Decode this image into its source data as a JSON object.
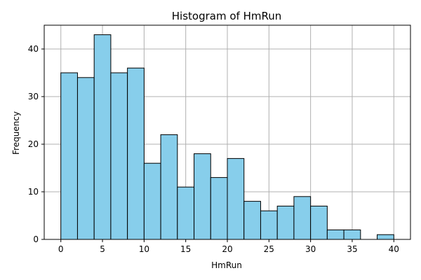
{
  "chart_data": {
    "type": "bar",
    "title": "Histogram of HmRun",
    "xlabel": "HmRun",
    "ylabel": "Frequency",
    "bin_edges": [
      0,
      2,
      4,
      6,
      8,
      10,
      12,
      14,
      16,
      18,
      20,
      22,
      24,
      26,
      28,
      30,
      32,
      34,
      36,
      38,
      40
    ],
    "counts": [
      35,
      34,
      43,
      35,
      36,
      16,
      22,
      11,
      18,
      13,
      17,
      8,
      6,
      7,
      9,
      7,
      2,
      2,
      0,
      1
    ],
    "xlim": [
      -2,
      42
    ],
    "ylim": [
      0,
      45
    ],
    "xticks": [
      0,
      5,
      10,
      15,
      20,
      25,
      30,
      35,
      40
    ],
    "yticks": [
      0,
      10,
      20,
      30,
      40
    ],
    "grid": true,
    "bar_color": "#87ceeb",
    "edge_color": "#000000"
  }
}
